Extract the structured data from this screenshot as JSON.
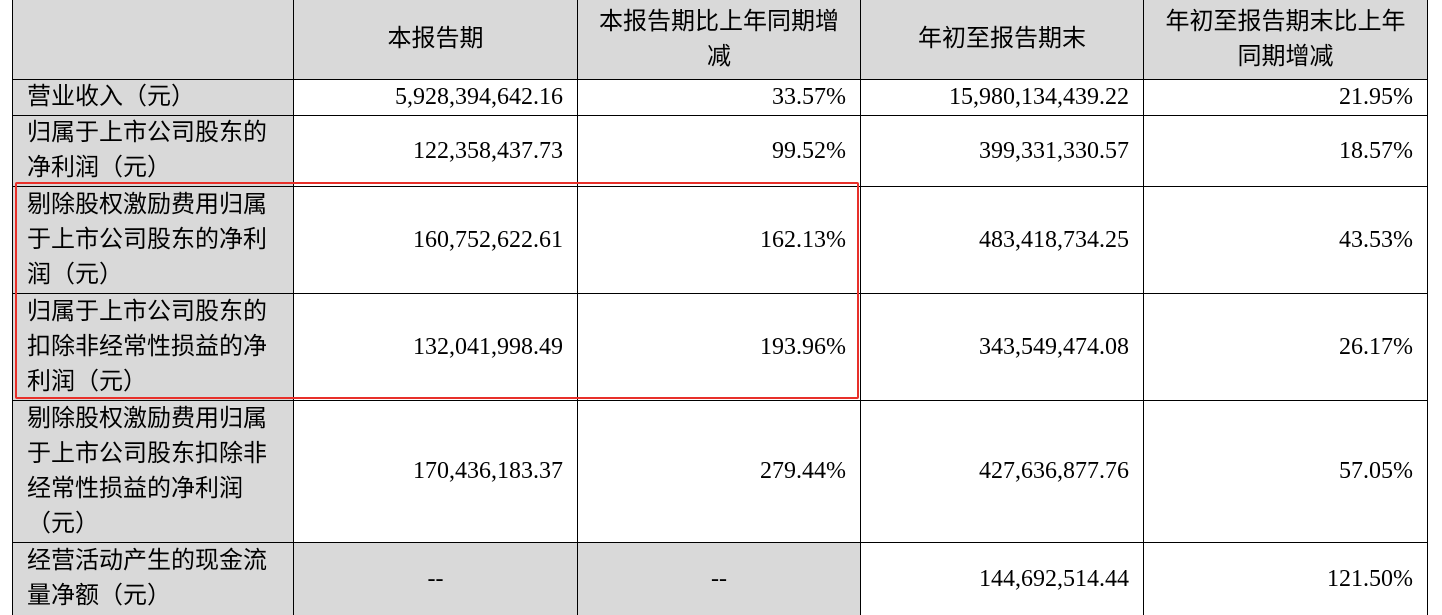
{
  "table": {
    "columns": [
      "本报告期",
      "本报告期比上年同期增减",
      "年初至报告期末",
      "年初至报告期末比上年同期增减"
    ],
    "rows": [
      [
        "营业收入（元）",
        "5,928,394,642.16",
        "33.57%",
        "15,980,134,439.22",
        "21.95%"
      ],
      [
        "归属于上市公司股东的净利润（元）",
        "122,358,437.73",
        "99.52%",
        "399,331,330.57",
        "18.57%"
      ],
      [
        "剔除股权激励费用归属于上市公司股东的净利润（元）",
        "160,752,622.61",
        "162.13%",
        "483,418,734.25",
        "43.53%"
      ],
      [
        "归属于上市公司股东的扣除非经常性损益的净利润（元）",
        "132,041,998.49",
        "193.96%",
        "343,549,474.08",
        "26.17%"
      ],
      [
        "剔除股权激励费用归属于上市公司股东扣除非经常性损益的净利润（元）",
        "170,436,183.37",
        "279.44%",
        "427,636,877.76",
        "57.05%"
      ],
      [
        "经营活动产生的现金流量净额（元）",
        "--",
        "--",
        "144,692,514.44",
        "121.50%"
      ]
    ]
  }
}
